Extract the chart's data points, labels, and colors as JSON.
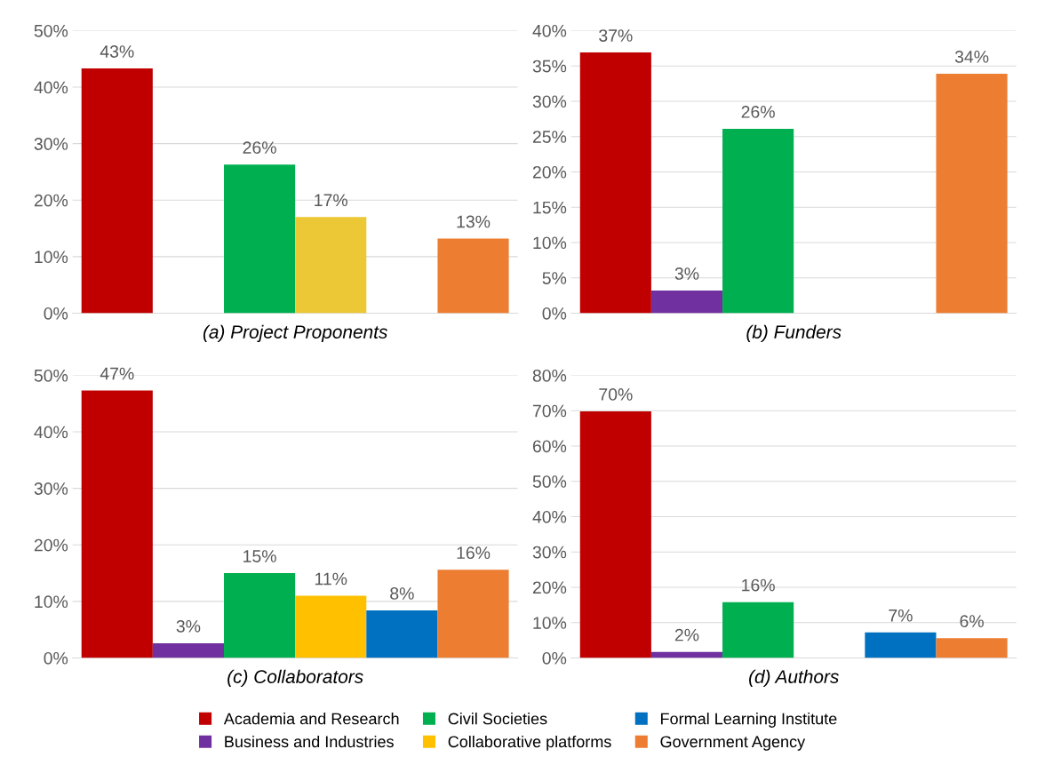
{
  "chart_data": [
    {
      "type": "bar",
      "xlabel": "(a) Project Proponents",
      "categories": [
        null
      ],
      "ylim": [
        0,
        50
      ],
      "yticks": [
        {
          "value": 0,
          "label": "0%"
        },
        {
          "value": 10,
          "label": "10%"
        },
        {
          "value": 20,
          "label": "20%"
        },
        {
          "value": 30,
          "label": "30%"
        },
        {
          "value": 40,
          "label": "40%"
        },
        {
          "value": 50,
          "label": "50%"
        }
      ],
      "grid": "y",
      "series": [
        {
          "color": "#c00000",
          "values": [
            43.3
          ],
          "value_labels": [
            "43%"
          ]
        },
        {
          "color": "#7030a0",
          "values": [
            null
          ],
          "value_labels": [
            null
          ]
        },
        {
          "color": "#00b050",
          "values": [
            26.3
          ],
          "value_labels": [
            "26%"
          ]
        },
        {
          "color": "#ecc837",
          "values": [
            17.0
          ],
          "value_labels": [
            "17%"
          ]
        },
        {
          "color": "#0070c0",
          "values": [
            null
          ],
          "value_labels": [
            null
          ]
        },
        {
          "color": "#ed7d31",
          "values": [
            13.2
          ],
          "value_labels": [
            "13%"
          ]
        }
      ]
    },
    {
      "type": "bar",
      "xlabel": "(b) Funders",
      "categories": [
        null
      ],
      "ylim": [
        0,
        40
      ],
      "yticks": [
        {
          "value": 0,
          "label": "0%"
        },
        {
          "value": 5,
          "label": "5%"
        },
        {
          "value": 10,
          "label": "10%"
        },
        {
          "value": 15,
          "label": "15%"
        },
        {
          "value": 20,
          "label": "20%"
        },
        {
          "value": 25,
          "label": "25%"
        },
        {
          "value": 30,
          "label": "30%"
        },
        {
          "value": 35,
          "label": "35%"
        },
        {
          "value": 40,
          "label": "40%"
        }
      ],
      "grid": "y",
      "series": [
        {
          "color": "#c00000",
          "values": [
            36.9
          ],
          "value_labels": [
            "37%"
          ]
        },
        {
          "color": "#7030a0",
          "values": [
            3.2
          ],
          "value_labels": [
            "3%"
          ]
        },
        {
          "color": "#00b050",
          "values": [
            26.1
          ],
          "value_labels": [
            "26%"
          ]
        },
        {
          "color": "#ffc000",
          "values": [
            null
          ],
          "value_labels": [
            null
          ]
        },
        {
          "color": "#0070c0",
          "values": [
            null
          ],
          "value_labels": [
            null
          ]
        },
        {
          "color": "#ed7d31",
          "values": [
            33.9
          ],
          "value_labels": [
            "34%"
          ]
        }
      ]
    },
    {
      "type": "bar",
      "xlabel": "(c) Collaborators",
      "categories": [
        null
      ],
      "ylim": [
        0,
        50
      ],
      "yticks": [
        {
          "value": 0,
          "label": "0%"
        },
        {
          "value": 10,
          "label": "10%"
        },
        {
          "value": 20,
          "label": "20%"
        },
        {
          "value": 30,
          "label": "30%"
        },
        {
          "value": 40,
          "label": "40%"
        },
        {
          "value": 50,
          "label": "50%"
        }
      ],
      "grid": "y",
      "legend": "bottom",
      "series": [
        {
          "name": "Academia and Research",
          "color": "#c00000",
          "values": [
            47.3
          ],
          "value_labels": [
            "47%"
          ]
        },
        {
          "name": "Business and Industries",
          "color": "#7030a0",
          "values": [
            2.6
          ],
          "value_labels": [
            "3%"
          ]
        },
        {
          "name": "Civil Societies",
          "color": "#00b050",
          "values": [
            15.0
          ],
          "value_labels": [
            "15%"
          ]
        },
        {
          "name": "Collaborative platforms",
          "color": "#ffc000",
          "values": [
            11.0
          ],
          "value_labels": [
            "11%"
          ]
        },
        {
          "name": "Formal Learning Institute",
          "color": "#0070c0",
          "values": [
            8.4
          ],
          "value_labels": [
            "8%"
          ]
        },
        {
          "name": "Government Agency",
          "color": "#ed7d31",
          "values": [
            15.6
          ],
          "value_labels": [
            "16%"
          ]
        }
      ]
    },
    {
      "type": "bar",
      "xlabel": "(d) Authors",
      "categories": [
        null
      ],
      "ylim": [
        0,
        80
      ],
      "yticks": [
        {
          "value": 0,
          "label": "0%"
        },
        {
          "value": 10,
          "label": "10%"
        },
        {
          "value": 20,
          "label": "20%"
        },
        {
          "value": 30,
          "label": "30%"
        },
        {
          "value": 40,
          "label": "40%"
        },
        {
          "value": 50,
          "label": "50%"
        },
        {
          "value": 60,
          "label": "60%"
        },
        {
          "value": 70,
          "label": "70%"
        },
        {
          "value": 80,
          "label": "80%"
        }
      ],
      "grid": "y",
      "series": [
        {
          "color": "#c00000",
          "values": [
            69.8
          ],
          "value_labels": [
            "70%"
          ]
        },
        {
          "color": "#7030a0",
          "values": [
            1.7
          ],
          "value_labels": [
            "2%"
          ]
        },
        {
          "color": "#00b050",
          "values": [
            15.8
          ],
          "value_labels": [
            "16%"
          ]
        },
        {
          "color": "#ffc000",
          "values": [
            null
          ],
          "value_labels": [
            null
          ]
        },
        {
          "color": "#0070c0",
          "values": [
            7.2
          ],
          "value_labels": [
            "7%"
          ]
        },
        {
          "color": "#ed7d31",
          "values": [
            5.6
          ],
          "value_labels": [
            "6%"
          ]
        }
      ]
    }
  ]
}
